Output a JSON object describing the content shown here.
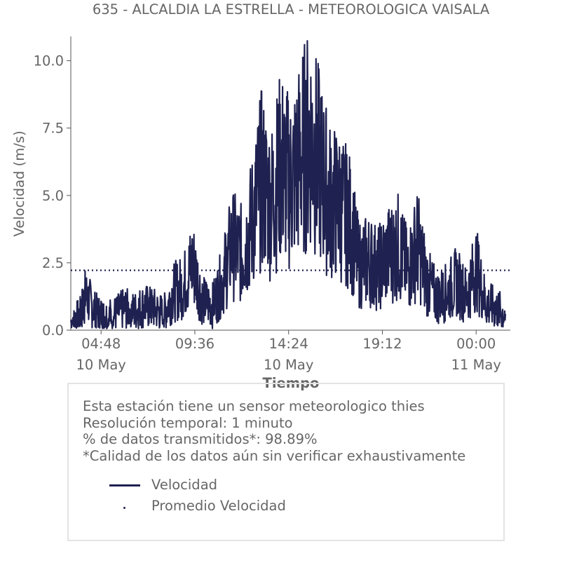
{
  "chart_data": {
    "type": "line",
    "title": "635 - ALCALDIA LA ESTRELLA - METEOROLOGICA VAISALA",
    "xlabel": "Tiempo",
    "ylabel": "Velocidad (m/s)",
    "ylim": [
      0,
      10.9
    ],
    "yticks": [
      "0.0",
      "2.5",
      "5.0",
      "7.5",
      "10.0"
    ],
    "xlim": [
      "2019-05-10T03:15",
      "2019-05-11T01:45"
    ],
    "xticks": [
      {
        "time": "2019-05-10T04:48",
        "line1": "04:48",
        "line2": "10 May"
      },
      {
        "time": "2019-05-10T09:36",
        "line1": "09:36",
        "line2": ""
      },
      {
        "time": "2019-05-10T14:24",
        "line1": "14:24",
        "line2": "10 May"
      },
      {
        "time": "2019-05-10T19:12",
        "line1": "19:12",
        "line2": ""
      },
      {
        "time": "2019-05-11T00:00",
        "line1": "00:00",
        "line2": "11 May"
      }
    ],
    "grid": false,
    "series": [
      {
        "name": "Velocidad",
        "color": "#1f2150",
        "style": "solid",
        "x": [
          "2019-05-10T03:15",
          "2019-05-10T03:45",
          "2019-05-10T04:00",
          "2019-05-10T04:30",
          "2019-05-10T05:00",
          "2019-05-10T05:30",
          "2019-05-10T06:00",
          "2019-05-10T06:30",
          "2019-05-10T07:00",
          "2019-05-10T07:30",
          "2019-05-10T08:00",
          "2019-05-10T08:30",
          "2019-05-10T09:00",
          "2019-05-10T09:30",
          "2019-05-10T10:00",
          "2019-05-10T10:30",
          "2019-05-10T11:00",
          "2019-05-10T11:30",
          "2019-05-10T12:00",
          "2019-05-10T12:30",
          "2019-05-10T13:00",
          "2019-05-10T13:30",
          "2019-05-10T14:00",
          "2019-05-10T14:30",
          "2019-05-10T15:00",
          "2019-05-10T15:30",
          "2019-05-10T16:00",
          "2019-05-10T16:30",
          "2019-05-10T17:00",
          "2019-05-10T17:30",
          "2019-05-10T18:00",
          "2019-05-10T18:30",
          "2019-05-10T19:00",
          "2019-05-10T19:30",
          "2019-05-10T20:00",
          "2019-05-10T20:30",
          "2019-05-10T21:00",
          "2019-05-10T21:30",
          "2019-05-10T22:00",
          "2019-05-10T22:30",
          "2019-05-10T23:00",
          "2019-05-10T23:30",
          "2019-05-11T00:00",
          "2019-05-11T00:30",
          "2019-05-11T01:00",
          "2019-05-11T01:30"
        ],
        "values": [
          0.3,
          0.6,
          1.3,
          0.7,
          0.5,
          0.6,
          0.8,
          0.7,
          0.9,
          0.8,
          0.6,
          1.4,
          1.6,
          2.5,
          1.1,
          0.9,
          1.8,
          3.2,
          2.8,
          3.9,
          5.6,
          4.7,
          6.1,
          5.4,
          6.4,
          7.2,
          6.0,
          4.8,
          4.6,
          4.1,
          2.4,
          2.6,
          2.3,
          2.8,
          3.1,
          2.2,
          3.2,
          1.8,
          1.2,
          1.4,
          1.8,
          1.3,
          2.3,
          1.0,
          0.8,
          0.6
        ]
      },
      {
        "name": "Promedio Velocidad",
        "color": "#1f2150",
        "style": "dotted",
        "constant": 2.22
      }
    ]
  },
  "info": {
    "line1": "Esta estación tiene un sensor meteorologico thies",
    "line2": "Resolución temporal: 1 minuto",
    "line3": "% de datos transmitidos*: 98.89%",
    "line4": "*Calidad de los datos aún sin verificar exhaustivamente"
  },
  "legend": {
    "velocidad": "Velocidad",
    "promedio": "Promedio Velocidad"
  }
}
